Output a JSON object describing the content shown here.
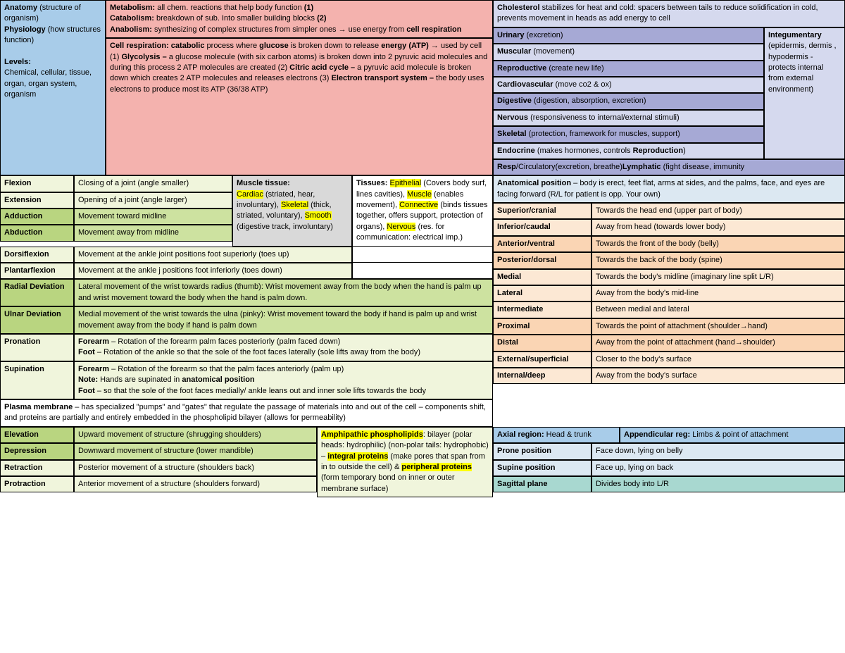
{
  "colors": {
    "blue": "#a8cce9",
    "pink": "#f4b2ae",
    "peach": "#fad5b4",
    "lightpeach": "#fce8d4",
    "lavender": "#d5d9ee",
    "purple": "#a6a9d5",
    "palegreen": "#f0f5dc",
    "green": "#cde2a0",
    "green2": "#b9d580",
    "gray": "#d9d9d9",
    "lightblue": "#dce8f2",
    "cyan": "#a8d8d0",
    "white": "#ffffff",
    "highlight": "#ffff00"
  },
  "top": {
    "left": {
      "anatomy_h": "Anatomy",
      "anatomy_d": "(structure of organism)",
      "physiology_h": "Physiology",
      "physiology_d": "(how structures function)",
      "levels_h": "Levels:",
      "levels_d": "Chemical, cellular, tissue, organ, organ system, organism"
    },
    "mid": {
      "metab_h": "Metabolism:",
      "metab_d": " all chem. reactions that help body function ",
      "metab_n": "(1)",
      "catab_h": "Catabolism:",
      "catab_d": " breakdown of sub. Into smaller building blocks ",
      "catab_n": "(2)",
      "anab_h": "Anabolism:",
      "anab_d": " synthesizing of complex structures from simpler ones → use energy from ",
      "anab_h2": "cell respiration",
      "resp_h": "Cell respiration: catabolic",
      "resp_d1": " process where ",
      "resp_h2": "glucose",
      "resp_d2": " is broken down to release ",
      "resp_h3": "energy (ATP)",
      "resp_d3": " → used by cell (1) ",
      "resp_h4": "Glycolysis –",
      "resp_d4": " a glucose molecule (with six carbon atoms) is broken down into 2 pyruvic acid molecules and during this process 2 ATP molecules are created (2) ",
      "resp_h5": "Citric acid cycle –",
      "resp_d5": " a pyruvic acid molecule is broken down which creates 2 ATP molecules and releases electrons (3) ",
      "resp_h6": "Electron transport system –",
      "resp_d6": " the body uses electrons to produce most its ATP (36/38 ATP)"
    },
    "right": {
      "chol_h": "Cholesterol",
      "chol_d": " stabilizes for heat and cold: spacers between tails to reduce solidification in cold, prevents movement in heads as add energy to cell",
      "integ_h": "Integumentary",
      "integ_d": "(epidermis, dermis , hypodermis - protects internal from external environment)",
      "systems": [
        {
          "h": "Urinary",
          "d": " (excretion)",
          "c": "purple"
        },
        {
          "h": "Muscular",
          "d": " (movement)",
          "c": "lavender"
        },
        {
          "h": "Reproductive",
          "d": " (create new life)",
          "c": "purple"
        },
        {
          "h": "Cardiovascular",
          "d": " (move co2 & ox)",
          "c": "lavender"
        },
        {
          "h": "Digestive",
          "d": " (digestion, absorption, excretion)",
          "c": "purple"
        },
        {
          "h": "Nervous",
          "d": " (responsiveness to internal/external stimuli)",
          "c": "lavender"
        },
        {
          "h": "Skeletal",
          "d": " (protection, framework for muscles, support)",
          "c": "purple"
        },
        {
          "h": "Endocrine",
          "d": " (makes hormones, controls ",
          "h2": "Reproduction",
          ")": "",
          "c": "lavender"
        }
      ],
      "resp2_h": "Resp",
      "resp2_d": "/Circulatory(excretion, breathe)",
      "lymph_h": "Lymphatic",
      "lymph_d": " (fight disease, immunity",
      "c": "purple"
    }
  },
  "movements": [
    {
      "t": "Flexion",
      "d": "Closing of a joint (angle smaller)",
      "tc": "palegreen",
      "dc": "palegreen"
    },
    {
      "t": "Extension",
      "d": "Opening of a joint (angle larger)",
      "tc": "palegreen",
      "dc": "palegreen"
    },
    {
      "t": "Adduction",
      "d": "Movement toward midline",
      "tc": "green2",
      "dc": "green"
    },
    {
      "t": "Abduction",
      "d": "Movement away from midline",
      "tc": "green2",
      "dc": "green"
    },
    {
      "t": "Dorsiflexion",
      "d": "Movement at the ankle joint positions foot superiorly (toes up)",
      "tc": "palegreen",
      "dc": "palegreen",
      "wide": true
    },
    {
      "t": "Plantarflexion",
      "d": "Movement at the ankle j positions foot inferiorly (toes down)",
      "tc": "palegreen",
      "dc": "palegreen",
      "wide": true
    },
    {
      "t": "Radial Deviation",
      "d": "Lateral movement of the wrist towards radius (thumb): Wrist movement away from the body when the hand is palm up and wrist movement toward the body when the hand is palm down.",
      "tc": "green2",
      "dc": "green",
      "full": true
    },
    {
      "t": "Ulnar Deviation",
      "d": "Medial movement of the wrist towards the ulna (pinky): Wrist movement toward the body if hand is palm up and wrist movement away from the body if hand is palm down",
      "tc": "green2",
      "dc": "green",
      "full": true
    },
    {
      "t": "Pronation",
      "html": "<b>Forearm</b> – Rotation of the forearm palm faces posteriorly (palm faced down)<br><b>Foot</b> – Rotation of the ankle so that the sole of the foot faces laterally (sole lifts away from the body)",
      "tc": "palegreen",
      "dc": "palegreen",
      "full": true
    },
    {
      "t": "Supination",
      "html": "<b>Forearm</b> – Rotation of the forearm so that the palm faces anteriorly (palm up)<br><b>Note:</b> Hands are supinated in <b>anatomical position</b><br><b>Foot</b> – so that the sole of the foot faces medially/ ankle leans out and inner sole lifts towards the body",
      "tc": "palegreen",
      "dc": "palegreen",
      "full": true
    }
  ],
  "muscle_tissue": {
    "h": "Muscle tissue:",
    "items": [
      {
        "hl": "Cardiac",
        "d": " (striated, hear, involuntary), "
      },
      {
        "hl": "Skeletal",
        "d": " (thick, striated, voluntary), "
      },
      {
        "hl": "Smooth",
        "d": " (digestive track, involuntary)"
      }
    ]
  },
  "tissues": {
    "h": "Tissues: ",
    "items": [
      {
        "hl": "Epithelial",
        "d": " (Covers body surf, lines cavities), "
      },
      {
        "hl": "Muscle",
        "d": " (enables movement), "
      },
      {
        "hl": "Connective",
        "d": " (binds tissues together, offers support, protection of organs), "
      },
      {
        "hl": "Nervous",
        "d": " (res. for communication: electrical imp.)"
      }
    ]
  },
  "anat_pos": {
    "h": "Anatomical position",
    "d": " – body is erect, feet flat, arms at sides, and the palms, face, and eyes are facing forward (R/L for patient is opp. Your own)"
  },
  "directions": [
    {
      "t": "Superior/cranial",
      "d": "Towards the head end (upper part of body)",
      "c": "lightpeach"
    },
    {
      "t": "Inferior/caudal",
      "d": "Away from head (towards lower body)",
      "c": "lightpeach"
    },
    {
      "t": "Anterior/ventral",
      "d": "Towards the front of the body (belly)",
      "c": "peach"
    },
    {
      "t": "Posterior/dorsal",
      "d": "Towards the back of the body (spine)",
      "c": "peach"
    },
    {
      "t": "Medial",
      "d": "Towards the body's midline (imaginary line split L/R)",
      "c": "lightpeach"
    },
    {
      "t": "Lateral",
      "d": "Away from the body's mid-line",
      "c": "lightpeach"
    },
    {
      "t": "Intermediate",
      "d": "Between medial and lateral",
      "c": "lightpeach"
    },
    {
      "t": "Proximal",
      "d": "Towards the point of attachment (shoulder→hand)",
      "c": "peach"
    },
    {
      "t": "Distal",
      "d": "Away from the point of attachment (hand→shoulder)",
      "c": "peach"
    },
    {
      "t": "External/superficial",
      "d": "Closer to the body's surface",
      "c": "lightpeach"
    },
    {
      "t": "Internal/deep",
      "d": "Away from the body's surface",
      "c": "lightpeach"
    }
  ],
  "plasma": {
    "h": "Plasma membrane",
    "d": " – has specialized \"pumps\" and \"gates\" that regulate the passage of materials into and out of the cell – components shift, and proteins are partially and entirely embedded in the phospholipid bilayer (allows for permeability)"
  },
  "movements2": [
    {
      "t": "Elevation",
      "d": "Upward movement of structure (shrugging shoulders)",
      "tc": "green2",
      "dc": "green"
    },
    {
      "t": "Depression",
      "d": "Downward movement of structure (lower mandible)",
      "tc": "green2",
      "dc": "green"
    },
    {
      "t": "Retraction",
      "d": "Posterior movement of a structure (shoulders back)",
      "tc": "palegreen",
      "dc": "palegreen"
    },
    {
      "t": "Protraction",
      "d": "Anterior movement of a structure (shoulders forward)",
      "tc": "palegreen",
      "dc": "palegreen"
    }
  ],
  "amphi": {
    "hl1": "Amphipathic phospholipids",
    "d1": ": bilayer (polar heads: hydrophilic) (non-polar tails: hydrophobic) – ",
    "hl2": "integral proteins",
    "d2": " (make pores that span from in to outside the cell) & ",
    "hl3": "peripheral proteins",
    "d3": " (form temporary bond on inner or outer membrane surface)"
  },
  "regions": [
    {
      "t": "Axial region:",
      "d": " Head & trunk",
      "t2": "Appendicular reg:",
      "d2": " Limbs & point of attachment",
      "c": "blue"
    },
    {
      "t": "Prone position",
      "d": "Face down, lying on belly",
      "c": "lightblue"
    },
    {
      "t": "Supine position",
      "d": "Face up, lying on back",
      "c": "lightblue"
    },
    {
      "t": "Sagittal plane",
      "d": "Divides body into L/R",
      "c": "cyan"
    }
  ]
}
